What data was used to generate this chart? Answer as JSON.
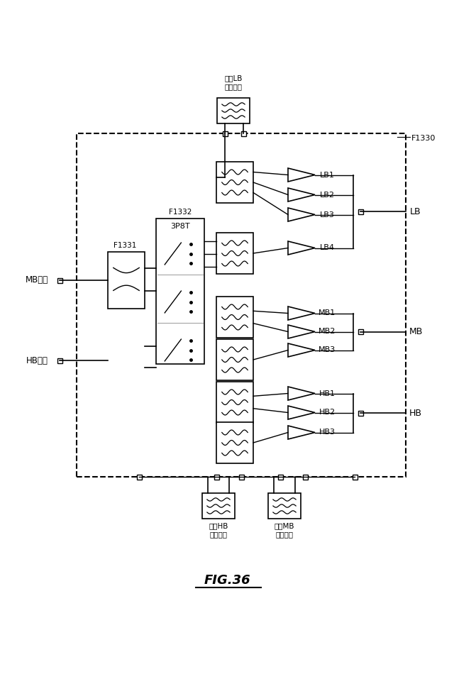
{
  "fig_width": 6.4,
  "fig_height": 9.57,
  "title": "FIG.36",
  "bg_color": "#ffffff",
  "line_color": "#000000",
  "labels": {
    "MB_input": "MB入力",
    "HB_input": "HB入力",
    "LB": "LB",
    "MB": "MB",
    "HB": "HB",
    "F1330": "F1330",
    "F1331": "F1331",
    "F1332": "F1332",
    "sw_label": "3P8T",
    "ext_lb": "外部LB\nフィルタ",
    "ext_hb": "外部HB\nフィルタ",
    "ext_mb": "外部MB\nフィルタ",
    "LB1": "LB1",
    "LB2": "LB2",
    "LB3": "LB3",
    "LB4": "LB4",
    "MB1": "MB1",
    "MB2": "MB2",
    "MB3": "MB3",
    "HB1": "HB1",
    "HB2": "HB2",
    "HB3": "HB3"
  }
}
